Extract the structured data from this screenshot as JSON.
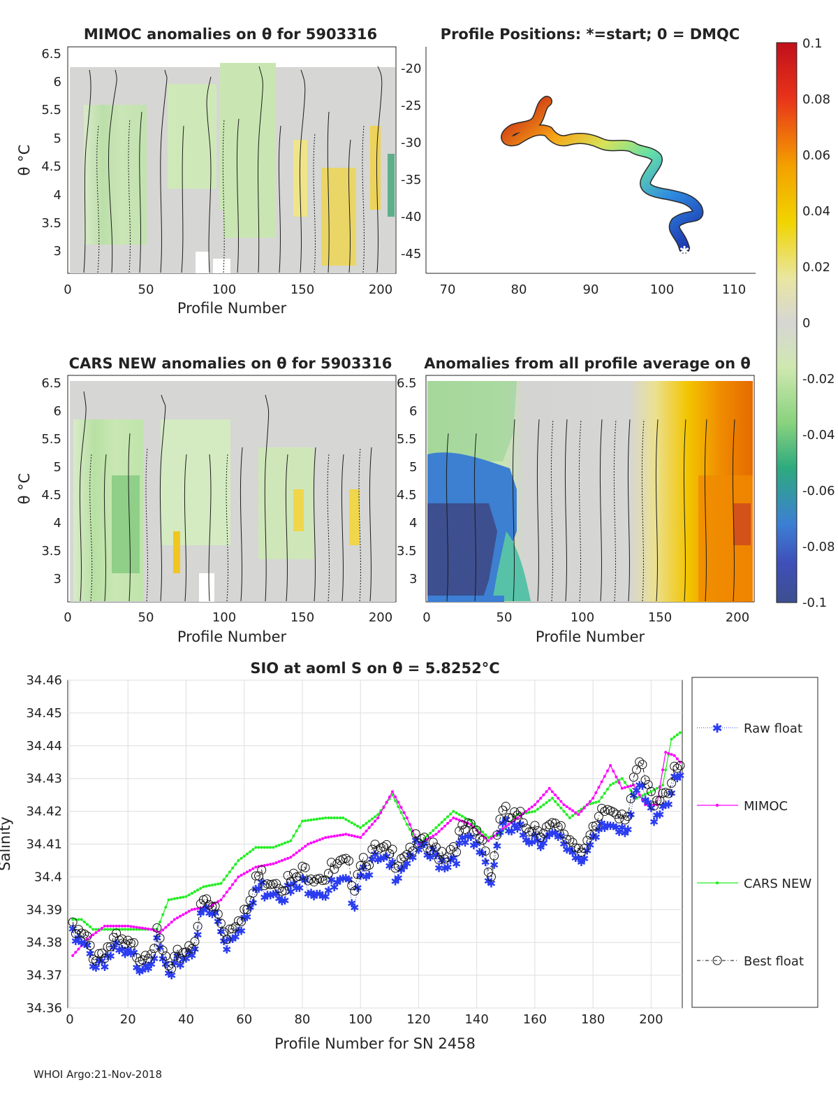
{
  "footer": "WHOI Argo:21-Nov-2018",
  "panels": {
    "mimoc": {
      "title": "MIMOC anomalies on θ  for 5903316",
      "ylabel": "θ °C",
      "xlabel": "Profile Number",
      "xticks": [
        "0",
        "50",
        "100",
        "150",
        "200"
      ],
      "yticks": [
        "6.5",
        "6",
        "5.5",
        "5",
        "4.5",
        "4",
        "3.5",
        "3"
      ]
    },
    "positions": {
      "title": "Profile Positions: *=start; 0 = DMQC",
      "xticks": [
        "70",
        "80",
        "90",
        "100",
        "110"
      ],
      "yticks": [
        "-20",
        "-25",
        "-30",
        "-35",
        "-40",
        "-45"
      ]
    },
    "cars": {
      "title": "CARS NEW anomalies on θ for 5903316",
      "ylabel": "θ °C",
      "xlabel": "Profile Number",
      "xticks": [
        "0",
        "50",
        "100",
        "150",
        "200"
      ],
      "yticks": [
        "6.5",
        "6",
        "5.5",
        "5",
        "4.5",
        "4",
        "3.5",
        "3"
      ]
    },
    "allavg": {
      "title": "Anomalies from all profile average on θ",
      "xlabel": "Profile Number",
      "xticks": [
        "0",
        "50",
        "100",
        "150",
        "200"
      ],
      "yticks": [
        "6.5",
        "6",
        "5.5",
        "5",
        "4.5",
        "4",
        "3.5",
        "3"
      ]
    },
    "colorbar": {
      "labels": [
        "0.1",
        "0.08",
        "0.06",
        "0.04",
        "0.02",
        "0",
        "-0.02",
        "-0.04",
        "-0.06",
        "-0.08",
        "-0.1"
      ]
    }
  },
  "colors": {
    "raw": "#2a3cf0",
    "mimoc": "#ff00ff",
    "cars": "#22ee22",
    "best": "#111111"
  },
  "chart_data": {
    "type": "line",
    "title": "SIO at aoml S on θ = 5.8252°C",
    "xlabel": "Profile Number for SN 2458",
    "ylabel": "Salinity",
    "xlim": [
      0,
      210
    ],
    "ylim": [
      34.36,
      34.46
    ],
    "xticks": [
      "0",
      "20",
      "40",
      "60",
      "80",
      "100",
      "120",
      "140",
      "160",
      "180",
      "200"
    ],
    "yticks": [
      "34.46",
      "34.45",
      "34.44",
      "34.43",
      "34.42",
      "34.41",
      "34.4",
      "34.39",
      "34.38",
      "34.37",
      "34.36"
    ],
    "legend": [
      "Raw float",
      "MIMOC",
      "CARS NEW",
      "Best float"
    ],
    "series_knots": {
      "raw": [
        [
          1,
          34.381
        ],
        [
          5,
          34.378
        ],
        [
          9,
          34.374
        ],
        [
          15,
          34.377
        ],
        [
          20,
          34.375
        ],
        [
          25,
          34.374
        ],
        [
          30,
          34.378
        ],
        [
          35,
          34.368
        ],
        [
          38,
          34.375
        ],
        [
          42,
          34.378
        ],
        [
          46,
          34.389
        ],
        [
          50,
          34.388
        ],
        [
          54,
          34.38
        ],
        [
          58,
          34.386
        ],
        [
          62,
          34.388
        ],
        [
          64,
          34.396
        ],
        [
          70,
          34.397
        ],
        [
          76,
          34.395
        ],
        [
          82,
          34.398
        ],
        [
          88,
          34.396
        ],
        [
          95,
          34.397
        ],
        [
          98,
          34.394
        ],
        [
          100,
          34.403
        ],
        [
          106,
          34.404
        ],
        [
          112,
          34.402
        ],
        [
          118,
          34.408
        ],
        [
          124,
          34.406
        ],
        [
          130,
          34.405
        ],
        [
          136,
          34.41
        ],
        [
          142,
          34.408
        ],
        [
          145,
          34.399
        ],
        [
          148,
          34.415
        ],
        [
          154,
          34.413
        ],
        [
          160,
          34.413
        ],
        [
          166,
          34.411
        ],
        [
          170,
          34.41
        ],
        [
          175,
          34.407
        ],
        [
          180,
          34.409
        ],
        [
          184,
          34.415
        ],
        [
          188,
          34.417
        ],
        [
          192,
          34.416
        ],
        [
          196,
          34.427
        ],
        [
          200,
          34.419
        ],
        [
          204,
          34.422
        ],
        [
          207,
          34.426
        ],
        [
          210,
          34.43
        ]
      ],
      "mimoc": [
        [
          1,
          34.376
        ],
        [
          6,
          34.381
        ],
        [
          12,
          34.385
        ],
        [
          20,
          34.385
        ],
        [
          28,
          34.384
        ],
        [
          31,
          34.383
        ],
        [
          36,
          34.387
        ],
        [
          42,
          34.39
        ],
        [
          48,
          34.391
        ],
        [
          52,
          34.393
        ],
        [
          58,
          34.4
        ],
        [
          64,
          34.403
        ],
        [
          70,
          34.404
        ],
        [
          76,
          34.406
        ],
        [
          82,
          34.41
        ],
        [
          88,
          34.412
        ],
        [
          95,
          34.413
        ],
        [
          100,
          34.412
        ],
        [
          106,
          34.418
        ],
        [
          111,
          34.426
        ],
        [
          116,
          34.418
        ],
        [
          120,
          34.41
        ],
        [
          126,
          34.413
        ],
        [
          132,
          34.418
        ],
        [
          138,
          34.416
        ],
        [
          144,
          34.411
        ],
        [
          148,
          34.414
        ],
        [
          154,
          34.418
        ],
        [
          160,
          34.422
        ],
        [
          165,
          34.427
        ],
        [
          170,
          34.422
        ],
        [
          175,
          34.419
        ],
        [
          180,
          34.424
        ],
        [
          186,
          34.434
        ],
        [
          190,
          34.427
        ],
        [
          194,
          34.428
        ],
        [
          198,
          34.422
        ],
        [
          202,
          34.422
        ],
        [
          205,
          34.438
        ],
        [
          208,
          34.437
        ],
        [
          210,
          34.435
        ]
      ],
      "cars": [
        [
          1,
          34.387
        ],
        [
          4,
          34.387
        ],
        [
          8,
          34.384
        ],
        [
          15,
          34.384
        ],
        [
          22,
          34.384
        ],
        [
          30,
          34.384
        ],
        [
          34,
          34.393
        ],
        [
          40,
          34.394
        ],
        [
          46,
          34.397
        ],
        [
          52,
          34.398
        ],
        [
          58,
          34.405
        ],
        [
          64,
          34.409
        ],
        [
          70,
          34.409
        ],
        [
          76,
          34.411
        ],
        [
          80,
          34.417
        ],
        [
          88,
          34.418
        ],
        [
          94,
          34.418
        ],
        [
          100,
          34.415
        ],
        [
          106,
          34.419
        ],
        [
          111,
          34.425
        ],
        [
          116,
          34.416
        ],
        [
          120,
          34.41
        ],
        [
          126,
          34.415
        ],
        [
          132,
          34.42
        ],
        [
          138,
          34.417
        ],
        [
          144,
          34.412
        ],
        [
          148,
          34.413
        ],
        [
          154,
          34.419
        ],
        [
          160,
          34.42
        ],
        [
          166,
          34.424
        ],
        [
          172,
          34.418
        ],
        [
          178,
          34.422
        ],
        [
          182,
          34.423
        ],
        [
          186,
          34.428
        ],
        [
          190,
          34.43
        ],
        [
          195,
          34.424
        ],
        [
          200,
          34.426
        ],
        [
          204,
          34.428
        ],
        [
          207,
          34.442
        ],
        [
          210,
          34.444
        ]
      ],
      "best": [
        [
          1,
          34.383
        ],
        [
          5,
          34.381
        ],
        [
          9,
          34.376
        ],
        [
          15,
          34.38
        ],
        [
          20,
          34.378
        ],
        [
          25,
          34.377
        ],
        [
          30,
          34.381
        ],
        [
          35,
          34.37
        ],
        [
          38,
          34.377
        ],
        [
          42,
          34.38
        ],
        [
          46,
          34.392
        ],
        [
          50,
          34.39
        ],
        [
          54,
          34.383
        ],
        [
          58,
          34.389
        ],
        [
          62,
          34.39
        ],
        [
          64,
          34.4
        ],
        [
          70,
          34.4
        ],
        [
          76,
          34.398
        ],
        [
          82,
          34.402
        ],
        [
          88,
          34.401
        ],
        [
          95,
          34.403
        ],
        [
          98,
          34.399
        ],
        [
          100,
          34.406
        ],
        [
          106,
          34.407
        ],
        [
          112,
          34.406
        ],
        [
          118,
          34.41
        ],
        [
          124,
          34.408
        ],
        [
          130,
          34.408
        ],
        [
          136,
          34.414
        ],
        [
          142,
          34.412
        ],
        [
          145,
          34.401
        ],
        [
          148,
          34.419
        ],
        [
          154,
          34.417
        ],
        [
          160,
          34.416
        ],
        [
          166,
          34.414
        ],
        [
          170,
          34.413
        ],
        [
          175,
          34.41
        ],
        [
          180,
          34.412
        ],
        [
          184,
          34.42
        ],
        [
          188,
          34.421
        ],
        [
          192,
          34.42
        ],
        [
          196,
          34.434
        ],
        [
          200,
          34.424
        ],
        [
          204,
          34.426
        ],
        [
          207,
          34.429
        ],
        [
          210,
          34.433
        ]
      ]
    }
  }
}
